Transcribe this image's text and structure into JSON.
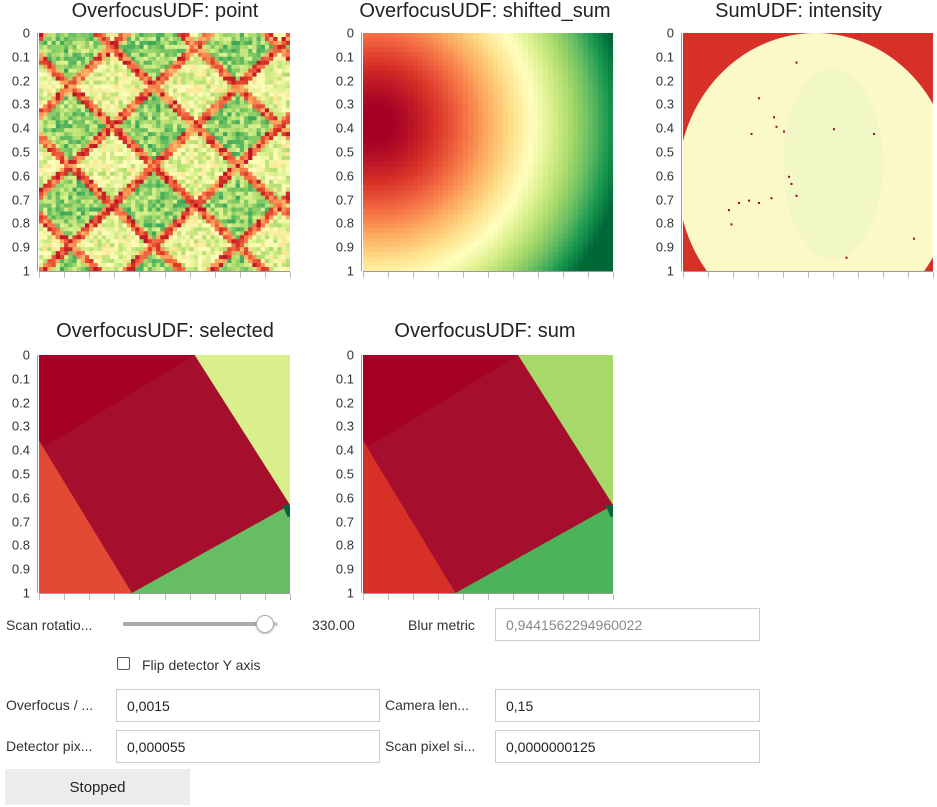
{
  "plots": [
    {
      "id": "point",
      "title": "OverfocusUDF: point",
      "ticks": [
        "0",
        "0.1",
        "0.2",
        "0.3",
        "0.4",
        "0.5",
        "0.6",
        "0.7",
        "0.8",
        "0.9",
        "1"
      ]
    },
    {
      "id": "shifted_sum",
      "title": "OverfocusUDF: shifted_sum",
      "ticks": [
        "0",
        "0.1",
        "0.2",
        "0.3",
        "0.4",
        "0.5",
        "0.6",
        "0.7",
        "0.8",
        "0.9",
        "1"
      ]
    },
    {
      "id": "intensity",
      "title": "SumUDF: intensity",
      "ticks": [
        "0",
        "0.1",
        "0.2",
        "0.3",
        "0.4",
        "0.5",
        "0.6",
        "0.7",
        "0.8",
        "0.9",
        "1"
      ]
    },
    {
      "id": "selected",
      "title": "OverfocusUDF: selected",
      "ticks": [
        "0",
        "0.1",
        "0.2",
        "0.3",
        "0.4",
        "0.5",
        "0.6",
        "0.7",
        "0.8",
        "0.9",
        "1"
      ]
    },
    {
      "id": "sum",
      "title": "OverfocusUDF: sum",
      "ticks": [
        "0",
        "0.1",
        "0.2",
        "0.3",
        "0.4",
        "0.5",
        "0.6",
        "0.7",
        "0.8",
        "0.9",
        "1"
      ]
    }
  ],
  "colors": {
    "dark_red": "#a50026",
    "red": "#d73027",
    "orange": "#f46d43",
    "light_orange": "#fdae61",
    "pale": "#fee08b",
    "cream": "#ffffbf",
    "light_green": "#d9ef8b",
    "green": "#a6d96a",
    "mid_green": "#66bd63",
    "dark_green": "#006837"
  },
  "controls": {
    "scan_rotation": {
      "label": "Scan rotatio...",
      "value": "330.00",
      "slider_fraction": 0.917
    },
    "blur_metric": {
      "label": "Blur metric",
      "value": "0,9441562294960022"
    },
    "flip_detector": {
      "label": "Flip detector Y axis",
      "checked": false
    },
    "overfocus": {
      "label": "Overfocus / ...",
      "value": "0,0015"
    },
    "camera_length": {
      "label": "Camera len...",
      "value": "0,15"
    },
    "detector_pixel": {
      "label": "Detector pix...",
      "value": "0,000055"
    },
    "scan_pixel": {
      "label": "Scan pixel si...",
      "value": "0,0000000125"
    },
    "status_button": {
      "label": "Stopped"
    }
  }
}
